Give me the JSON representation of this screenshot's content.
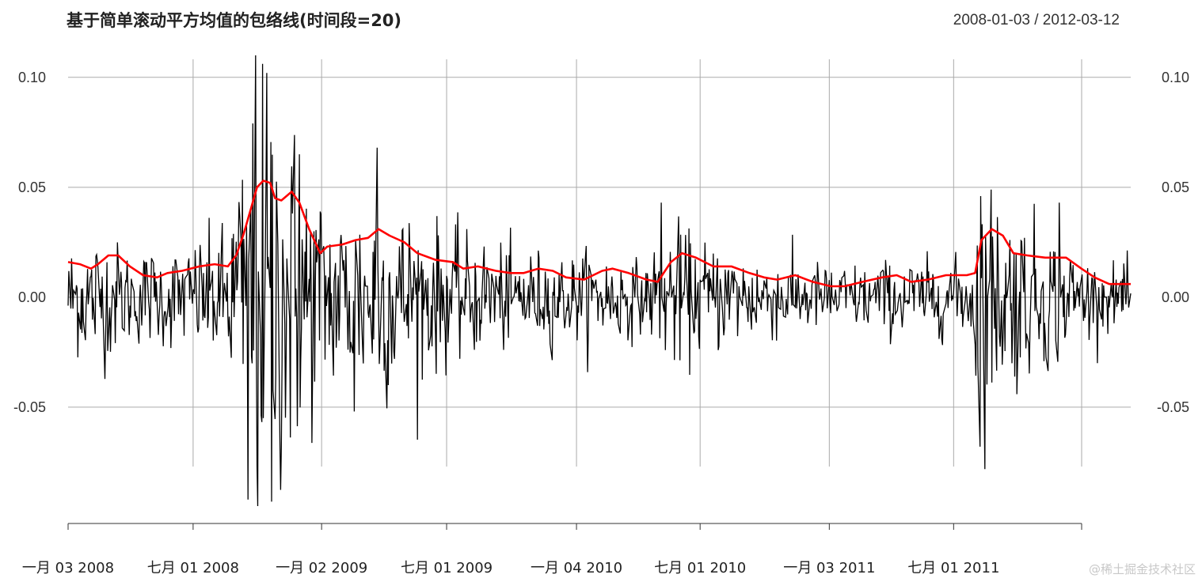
{
  "title": "基于简单滚动平方均值的包络线(时间段=20)",
  "date_range": "2008-01-03 / 2012-03-12",
  "watermark": "@稀土掘金技术社区",
  "colors": {
    "returns": "#000000",
    "envelope": "#ff0000",
    "grid": "#aaaaaa",
    "zero_line": "#888888"
  },
  "chart_data": {
    "type": "line",
    "title": "基于简单滚动平方均值的包络线(时间段=20)",
    "x_range": [
      "2008-01-03",
      "2012-03-12"
    ],
    "ylim": [
      -0.095,
      0.11
    ],
    "grid": true,
    "y_ticks": [
      {
        "value": 0.1,
        "label": "0.10"
      },
      {
        "value": 0.05,
        "label": "0.05"
      },
      {
        "value": 0.0,
        "label": "0.00"
      },
      {
        "value": -0.05,
        "label": "-0.05"
      }
    ],
    "x_ticks": [
      {
        "date": "2008-01-03",
        "label": "一月 03 2008"
      },
      {
        "date": "2008-07-01",
        "label": "七月 01 2008"
      },
      {
        "date": "2009-01-02",
        "label": "一月 02 2009"
      },
      {
        "date": "2009-07-01",
        "label": "七月 01 2009"
      },
      {
        "date": "2010-01-04",
        "label": "一月 04 2010"
      },
      {
        "date": "2010-07-01",
        "label": "七月 01 2010"
      },
      {
        "date": "2011-01-03",
        "label": "一月 03 2011"
      },
      {
        "date": "2011-07-01",
        "label": "七月 01 2011"
      }
    ],
    "series": [
      {
        "kind": "returns",
        "volatility_profile": [
          [
            "2008-01-03",
            0.013
          ],
          [
            "2008-02-15",
            0.016
          ],
          [
            "2008-04-01",
            0.011
          ],
          [
            "2008-06-15",
            0.012
          ],
          [
            "2008-08-15",
            0.017
          ],
          [
            "2008-09-20",
            0.04
          ],
          [
            "2008-10-15",
            0.055
          ],
          [
            "2008-11-15",
            0.045
          ],
          [
            "2008-12-20",
            0.03
          ],
          [
            "2009-01-20",
            0.022
          ],
          [
            "2009-03-15",
            0.027
          ],
          [
            "2009-05-15",
            0.02
          ],
          [
            "2009-07-15",
            0.015
          ],
          [
            "2009-10-01",
            0.012
          ],
          [
            "2009-12-15",
            0.01
          ],
          [
            "2010-02-15",
            0.011
          ],
          [
            "2010-04-15",
            0.008
          ],
          [
            "2010-05-20",
            0.018
          ],
          [
            "2010-06-20",
            0.014
          ],
          [
            "2010-09-15",
            0.011
          ],
          [
            "2010-12-15",
            0.008
          ],
          [
            "2011-02-15",
            0.008
          ],
          [
            "2011-05-15",
            0.009
          ],
          [
            "2011-07-20",
            0.009
          ],
          [
            "2011-08-10",
            0.03
          ],
          [
            "2011-09-15",
            0.022
          ],
          [
            "2011-11-15",
            0.017
          ],
          [
            "2012-01-15",
            0.008
          ],
          [
            "2012-03-12",
            0.007
          ]
        ],
        "extremes": [
          [
            "2008-09-29",
            0.11
          ],
          [
            "2008-10-02",
            -0.095
          ],
          [
            "2008-10-15",
            0.102
          ],
          [
            "2008-10-22",
            -0.093
          ],
          [
            "2008-09-18",
            -0.092
          ],
          [
            "2008-10-10",
            -0.055
          ],
          [
            "2008-12-01",
            0.065
          ],
          [
            "2009-03-23",
            0.068
          ],
          [
            "2009-02-18",
            -0.052
          ],
          [
            "2010-05-06",
            0.043
          ],
          [
            "2011-08-08",
            -0.068
          ],
          [
            "2011-08-09",
            0.046
          ],
          [
            "2011-11-30",
            0.043
          ]
        ]
      },
      {
        "kind": "envelope",
        "points": [
          [
            "2008-01-03",
            0.016
          ],
          [
            "2008-01-20",
            0.015
          ],
          [
            "2008-02-05",
            0.013
          ],
          [
            "2008-02-15",
            0.015
          ],
          [
            "2008-03-01",
            0.019
          ],
          [
            "2008-03-15",
            0.019
          ],
          [
            "2008-04-01",
            0.014
          ],
          [
            "2008-04-20",
            0.01
          ],
          [
            "2008-05-10",
            0.009
          ],
          [
            "2008-05-25",
            0.011
          ],
          [
            "2008-06-15",
            0.012
          ],
          [
            "2008-07-10",
            0.014
          ],
          [
            "2008-08-01",
            0.015
          ],
          [
            "2008-08-20",
            0.014
          ],
          [
            "2008-09-01",
            0.019
          ],
          [
            "2008-09-12",
            0.029
          ],
          [
            "2008-09-22",
            0.04
          ],
          [
            "2008-10-01",
            0.05
          ],
          [
            "2008-10-10",
            0.053
          ],
          [
            "2008-10-20",
            0.052
          ],
          [
            "2008-10-27",
            0.045
          ],
          [
            "2008-11-05",
            0.044
          ],
          [
            "2008-11-20",
            0.048
          ],
          [
            "2008-12-01",
            0.043
          ],
          [
            "2008-12-15",
            0.031
          ],
          [
            "2008-12-31",
            0.02
          ],
          [
            "2009-01-10",
            0.023
          ],
          [
            "2009-02-01",
            0.024
          ],
          [
            "2009-02-20",
            0.026
          ],
          [
            "2009-03-10",
            0.027
          ],
          [
            "2009-03-25",
            0.031
          ],
          [
            "2009-04-10",
            0.028
          ],
          [
            "2009-05-01",
            0.025
          ],
          [
            "2009-05-20",
            0.02
          ],
          [
            "2009-06-15",
            0.017
          ],
          [
            "2009-07-10",
            0.016
          ],
          [
            "2009-07-25",
            0.013
          ],
          [
            "2009-08-15",
            0.014
          ],
          [
            "2009-09-10",
            0.012
          ],
          [
            "2009-10-01",
            0.011
          ],
          [
            "2009-10-20",
            0.011
          ],
          [
            "2009-11-10",
            0.013
          ],
          [
            "2009-12-01",
            0.012
          ],
          [
            "2009-12-20",
            0.009
          ],
          [
            "2010-01-15",
            0.008
          ],
          [
            "2010-02-10",
            0.012
          ],
          [
            "2010-02-25",
            0.013
          ],
          [
            "2010-03-20",
            0.011
          ],
          [
            "2010-04-15",
            0.008
          ],
          [
            "2010-05-01",
            0.007
          ],
          [
            "2010-05-20",
            0.016
          ],
          [
            "2010-06-05",
            0.02
          ],
          [
            "2010-06-25",
            0.018
          ],
          [
            "2010-07-20",
            0.014
          ],
          [
            "2010-08-15",
            0.014
          ],
          [
            "2010-09-10",
            0.011
          ],
          [
            "2010-10-01",
            0.009
          ],
          [
            "2010-10-20",
            0.008
          ],
          [
            "2010-11-15",
            0.01
          ],
          [
            "2010-12-10",
            0.007
          ],
          [
            "2011-01-05",
            0.005
          ],
          [
            "2011-01-25",
            0.005
          ],
          [
            "2011-02-20",
            0.007
          ],
          [
            "2011-03-20",
            0.009
          ],
          [
            "2011-04-10",
            0.01
          ],
          [
            "2011-05-01",
            0.007
          ],
          [
            "2011-05-25",
            0.008
          ],
          [
            "2011-06-20",
            0.01
          ],
          [
            "2011-07-20",
            0.01
          ],
          [
            "2011-08-01",
            0.011
          ],
          [
            "2011-08-10",
            0.026
          ],
          [
            "2011-08-25",
            0.031
          ],
          [
            "2011-09-10",
            0.028
          ],
          [
            "2011-09-25",
            0.02
          ],
          [
            "2011-10-15",
            0.019
          ],
          [
            "2011-11-10",
            0.018
          ],
          [
            "2011-12-10",
            0.018
          ],
          [
            "2012-01-01",
            0.013
          ],
          [
            "2012-01-20",
            0.009
          ],
          [
            "2012-02-10",
            0.006
          ],
          [
            "2012-03-12",
            0.006
          ]
        ]
      }
    ]
  }
}
